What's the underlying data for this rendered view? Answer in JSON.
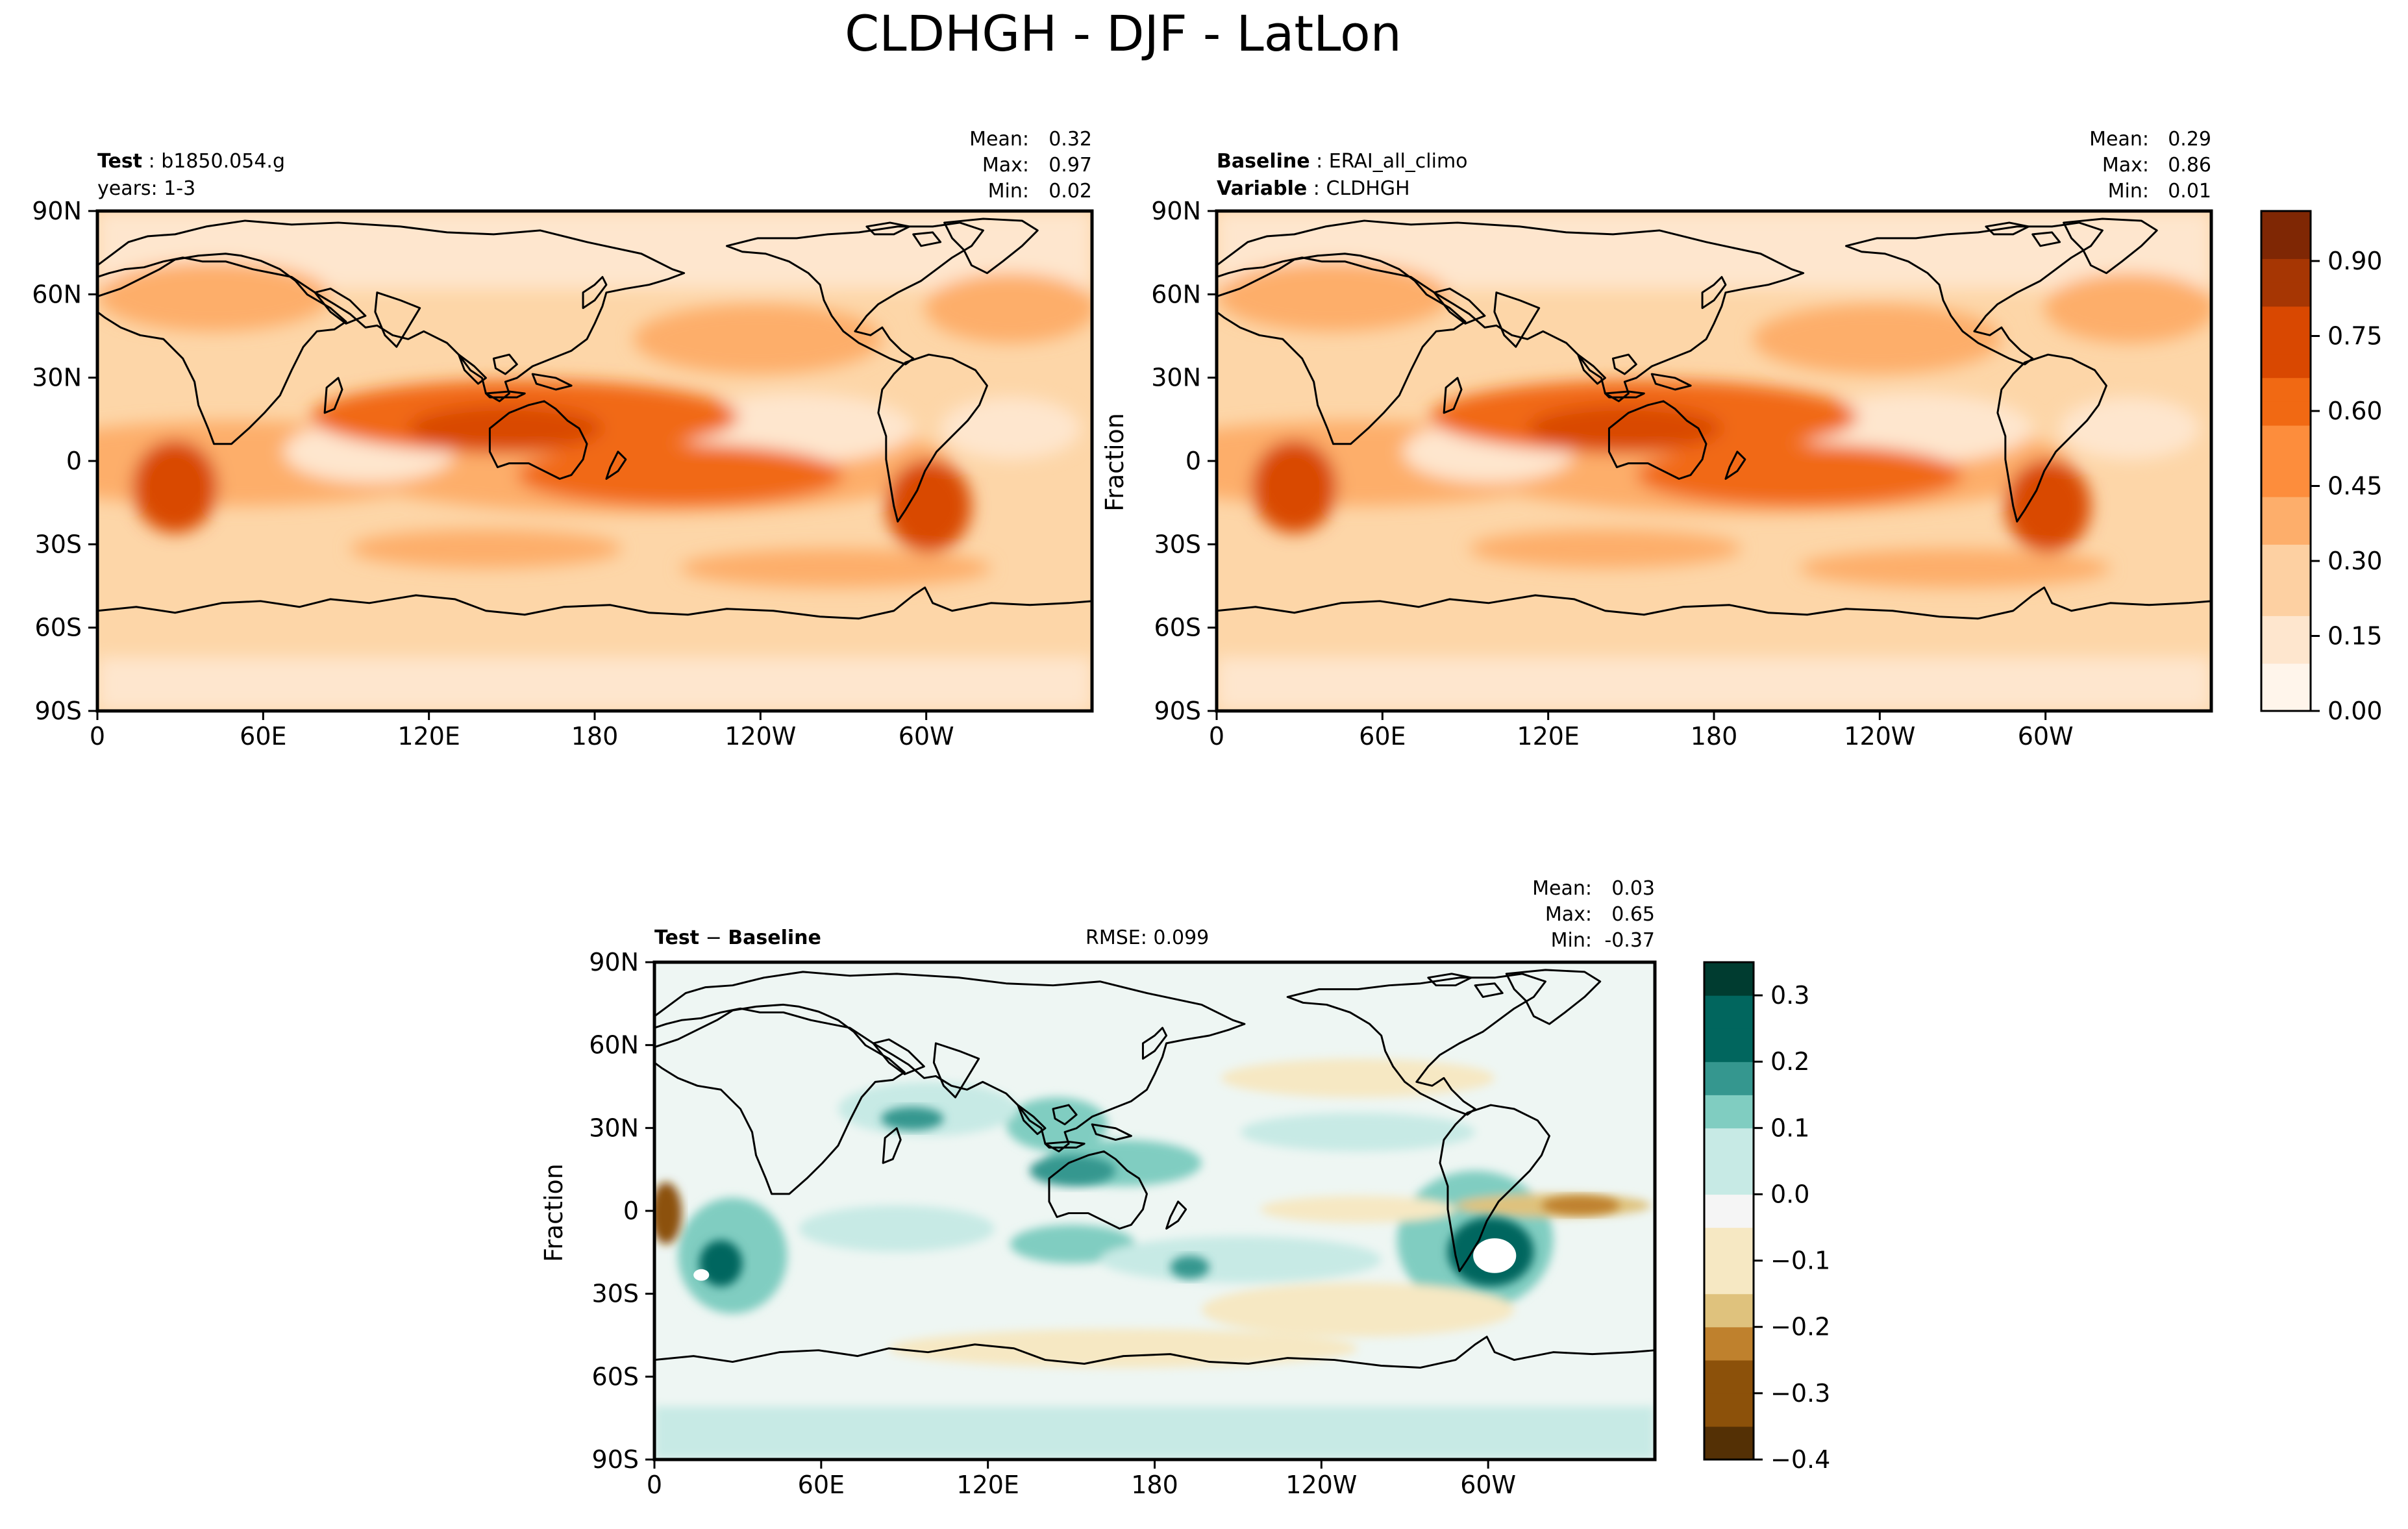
{
  "title": "CLDHGH - DJF - LatLon",
  "panels": {
    "test": {
      "name_label": "Test",
      "name_value": "b1850.054.g",
      "years_text": "years: 1-3",
      "mean_label": "Mean:",
      "mean_value": "0.32",
      "max_label": "Max:",
      "max_value": "0.97",
      "min_label": "Min:",
      "min_value": "0.02"
    },
    "baseline": {
      "name_label": "Baseline",
      "name_value": "ERAI_all_climo",
      "var_label": "Variable",
      "var_value": "CLDHGH",
      "ylabel": "Fraction",
      "mean_label": "Mean:",
      "mean_value": "0.29",
      "max_label": "Max:",
      "max_value": "0.86",
      "min_label": "Min:",
      "min_value": "0.01"
    },
    "diff": {
      "label_a": "Test",
      "label_sep": " − ",
      "label_b": "Baseline",
      "rmse_text": "RMSE: 0.099",
      "ylabel": "Fraction",
      "mean_label": "Mean:",
      "mean_value": "0.03",
      "max_label": "Max:",
      "max_value": "0.65",
      "min_label": "Min:",
      "min_value": "-0.37"
    }
  },
  "colors": {
    "orange": [
      "#fff5eb",
      "#fee6ce",
      "#fdd0a2",
      "#fdae6b",
      "#fd8d3c",
      "#f16913",
      "#d94801",
      "#a63603",
      "#7f2704"
    ],
    "diverge": [
      "#543005",
      "#8c510a",
      "#bf812d",
      "#dfc27d",
      "#f6e8c3",
      "#f5f5f5",
      "#c7eae5",
      "#80cdc1",
      "#35978f",
      "#01665e",
      "#003c30"
    ]
  },
  "chart_data": [
    {
      "type": "heatmap",
      "title": "Test: b1850.054.g",
      "x_ticks": [
        "0",
        "60E",
        "120E",
        "180",
        "120W",
        "60W"
      ],
      "y_ticks": [
        "90N",
        "60N",
        "30N",
        "0",
        "30S",
        "60S",
        "90S"
      ],
      "xlim": [
        0,
        360
      ],
      "ylim": [
        -90,
        90
      ],
      "stats": {
        "mean": 0.32,
        "max": 0.97,
        "min": 0.02
      }
    },
    {
      "type": "heatmap",
      "title": "Baseline: ERAI_all_climo",
      "x_ticks": [
        "0",
        "60E",
        "120E",
        "180",
        "120W",
        "60W"
      ],
      "y_ticks": [
        "90N",
        "60N",
        "30N",
        "0",
        "30S",
        "60S",
        "90S"
      ],
      "xlim": [
        0,
        360
      ],
      "ylim": [
        -90,
        90
      ],
      "ylabel": "Fraction",
      "stats": {
        "mean": 0.29,
        "max": 0.86,
        "min": 0.01
      },
      "colorbar": {
        "range": [
          0,
          1
        ],
        "ticks": [
          "0.00",
          "0.15",
          "0.30",
          "0.45",
          "0.60",
          "0.75",
          "0.90"
        ],
        "tick_values": [
          0,
          0.15,
          0.3,
          0.45,
          0.6,
          0.75,
          0.9
        ],
        "levels": 21
      }
    },
    {
      "type": "heatmap",
      "title": "Test - Baseline",
      "x_ticks": [
        "0",
        "60E",
        "120E",
        "180",
        "120W",
        "60W"
      ],
      "y_ticks": [
        "90N",
        "60N",
        "30N",
        "0",
        "30S",
        "60S",
        "90S"
      ],
      "xlim": [
        0,
        360
      ],
      "ylim": [
        -90,
        90
      ],
      "ylabel": "Fraction",
      "rmse": 0.099,
      "stats": {
        "mean": 0.03,
        "max": 0.65,
        "min": -0.37
      },
      "colorbar": {
        "range": [
          -0.4,
          0.35
        ],
        "ticks": [
          "0.3",
          "0.2",
          "0.1",
          "0.0",
          "−0.1",
          "−0.2",
          "−0.3",
          "−0.4"
        ],
        "tick_values": [
          0.3,
          0.2,
          0.1,
          0.0,
          -0.1,
          -0.2,
          -0.3,
          -0.4
        ],
        "levels": 15
      }
    }
  ]
}
